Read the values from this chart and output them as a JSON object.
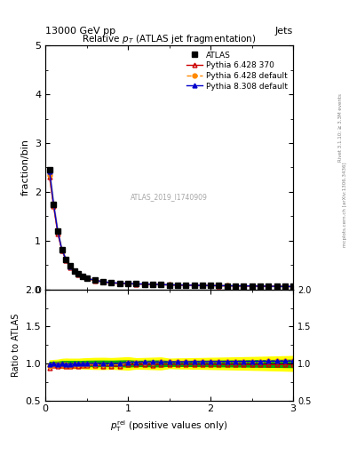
{
  "title": "Relative $p_T$ (ATLAS jet fragmentation)",
  "header_left": "13000 GeV pp",
  "header_right": "Jets",
  "ylabel_main": "fraction/bin",
  "ylabel_ratio": "Ratio to ATLAS",
  "watermark": "ATLAS_2019_I1740909",
  "right_label": "Rivet 3.1.10; ≥ 3.3M events",
  "right_label2": "mcplots.cern.ch [arXiv:1306.3436]",
  "x_data": [
    0.05,
    0.1,
    0.15,
    0.2,
    0.25,
    0.3,
    0.35,
    0.4,
    0.45,
    0.5,
    0.6,
    0.7,
    0.8,
    0.9,
    1.0,
    1.1,
    1.2,
    1.3,
    1.4,
    1.5,
    1.6,
    1.7,
    1.8,
    1.9,
    2.0,
    2.1,
    2.2,
    2.3,
    2.4,
    2.5,
    2.6,
    2.7,
    2.8,
    2.9,
    3.0
  ],
  "atlas_y": [
    2.45,
    1.75,
    1.2,
    0.82,
    0.62,
    0.48,
    0.38,
    0.32,
    0.27,
    0.23,
    0.19,
    0.16,
    0.14,
    0.13,
    0.12,
    0.115,
    0.11,
    0.105,
    0.1,
    0.095,
    0.09,
    0.088,
    0.085,
    0.083,
    0.08,
    0.078,
    0.076,
    0.074,
    0.072,
    0.07,
    0.068,
    0.066,
    0.064,
    0.062,
    0.06
  ],
  "atlas_err": [
    0.05,
    0.04,
    0.03,
    0.025,
    0.02,
    0.015,
    0.012,
    0.01,
    0.009,
    0.008,
    0.007,
    0.006,
    0.005,
    0.005,
    0.005,
    0.004,
    0.004,
    0.004,
    0.004,
    0.003,
    0.003,
    0.003,
    0.003,
    0.003,
    0.003,
    0.003,
    0.003,
    0.003,
    0.003,
    0.003,
    0.003,
    0.003,
    0.003,
    0.003,
    0.003
  ],
  "py6_370_y": [
    2.3,
    1.7,
    1.15,
    0.8,
    0.6,
    0.46,
    0.37,
    0.31,
    0.265,
    0.225,
    0.185,
    0.155,
    0.135,
    0.125,
    0.118,
    0.113,
    0.108,
    0.103,
    0.099,
    0.094,
    0.089,
    0.087,
    0.084,
    0.082,
    0.079,
    0.077,
    0.075,
    0.073,
    0.071,
    0.069,
    0.067,
    0.065,
    0.063,
    0.061,
    0.059
  ],
  "py6_def_y": [
    2.35,
    1.72,
    1.18,
    0.81,
    0.61,
    0.47,
    0.375,
    0.315,
    0.268,
    0.228,
    0.188,
    0.158,
    0.138,
    0.128,
    0.121,
    0.116,
    0.111,
    0.106,
    0.102,
    0.097,
    0.092,
    0.09,
    0.087,
    0.085,
    0.082,
    0.08,
    0.078,
    0.076,
    0.074,
    0.072,
    0.07,
    0.068,
    0.066,
    0.064,
    0.062
  ],
  "py8_def_y": [
    2.42,
    1.74,
    1.19,
    0.815,
    0.615,
    0.475,
    0.378,
    0.318,
    0.27,
    0.23,
    0.19,
    0.16,
    0.14,
    0.13,
    0.122,
    0.117,
    0.112,
    0.107,
    0.102,
    0.097,
    0.092,
    0.09,
    0.087,
    0.085,
    0.082,
    0.08,
    0.078,
    0.076,
    0.074,
    0.072,
    0.07,
    0.068,
    0.066,
    0.064,
    0.062
  ],
  "ylim_main": [
    0,
    5
  ],
  "ylim_ratio": [
    0.5,
    2.0
  ],
  "xlim": [
    0,
    3.0
  ],
  "color_atlas": "#000000",
  "color_py6_370": "#cc0000",
  "color_py6_def": "#ff8800",
  "color_py8_def": "#0000cc",
  "band_yellow": "#ffff00",
  "band_green": "#00aa00"
}
